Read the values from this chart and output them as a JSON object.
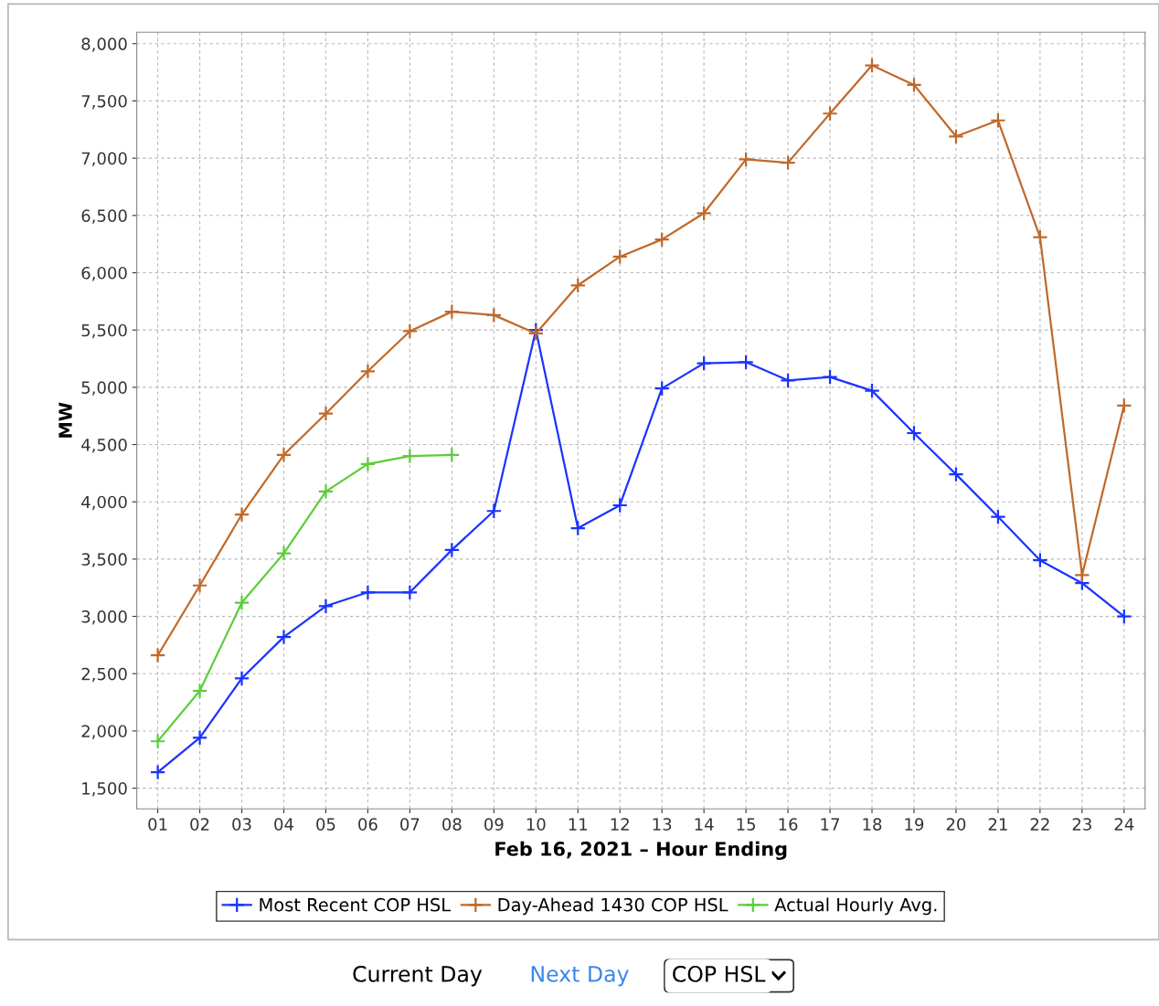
{
  "chart_data": {
    "type": "line",
    "xlabel": "Feb 16, 2021 – Hour Ending",
    "ylabel": "MW",
    "categories": [
      "01",
      "02",
      "03",
      "04",
      "05",
      "06",
      "07",
      "08",
      "09",
      "10",
      "11",
      "12",
      "13",
      "14",
      "15",
      "16",
      "17",
      "18",
      "19",
      "20",
      "21",
      "22",
      "23",
      "24"
    ],
    "series": [
      {
        "name": "Most Recent COP HSL",
        "color": "#1a33ff",
        "values": [
          1640,
          1940,
          2460,
          2820,
          3090,
          3210,
          3210,
          3580,
          3920,
          5500,
          3770,
          3970,
          4990,
          5210,
          5220,
          5060,
          5090,
          4970,
          4600,
          4240,
          3870,
          3490,
          3290,
          3000
        ]
      },
      {
        "name": "Day-Ahead 1430 COP HSL",
        "color": "#c0692a",
        "values": [
          2660,
          3270,
          3890,
          4410,
          4770,
          5140,
          5490,
          5660,
          5630,
          5470,
          5890,
          6140,
          6290,
          6520,
          6990,
          6960,
          7390,
          7810,
          7640,
          7190,
          7330,
          6310,
          3360,
          4840
        ]
      },
      {
        "name": "Actual Hourly Avg.",
        "color": "#5ccc3c",
        "values": [
          1910,
          2350,
          3120,
          3550,
          4090,
          4330,
          4400,
          4410,
          null,
          null,
          null,
          null,
          null,
          null,
          null,
          null,
          null,
          null,
          null,
          null,
          null,
          null,
          null,
          null
        ]
      }
    ],
    "ylim": [
      1320,
      8100
    ],
    "yticks": [
      {
        "value": 1500,
        "label": "1,500"
      },
      {
        "value": 2000,
        "label": "2,000"
      },
      {
        "value": 2500,
        "label": "2,500"
      },
      {
        "value": 3000,
        "label": "3,000"
      },
      {
        "value": 3500,
        "label": "3,500"
      },
      {
        "value": 4000,
        "label": "4,000"
      },
      {
        "value": 4500,
        "label": "4,500"
      },
      {
        "value": 5000,
        "label": "5,000"
      },
      {
        "value": 5500,
        "label": "5,500"
      },
      {
        "value": 6000,
        "label": "6,000"
      },
      {
        "value": 6500,
        "label": "6,500"
      },
      {
        "value": 7000,
        "label": "7,000"
      },
      {
        "value": 7500,
        "label": "7,500"
      },
      {
        "value": 8000,
        "label": "8,000"
      }
    ],
    "grid": true,
    "legend": "bottom",
    "marker": "cross",
    "line_style": "solid",
    "annotations": [
      "Current Day",
      "Next Day",
      "COP HSL"
    ]
  }
}
